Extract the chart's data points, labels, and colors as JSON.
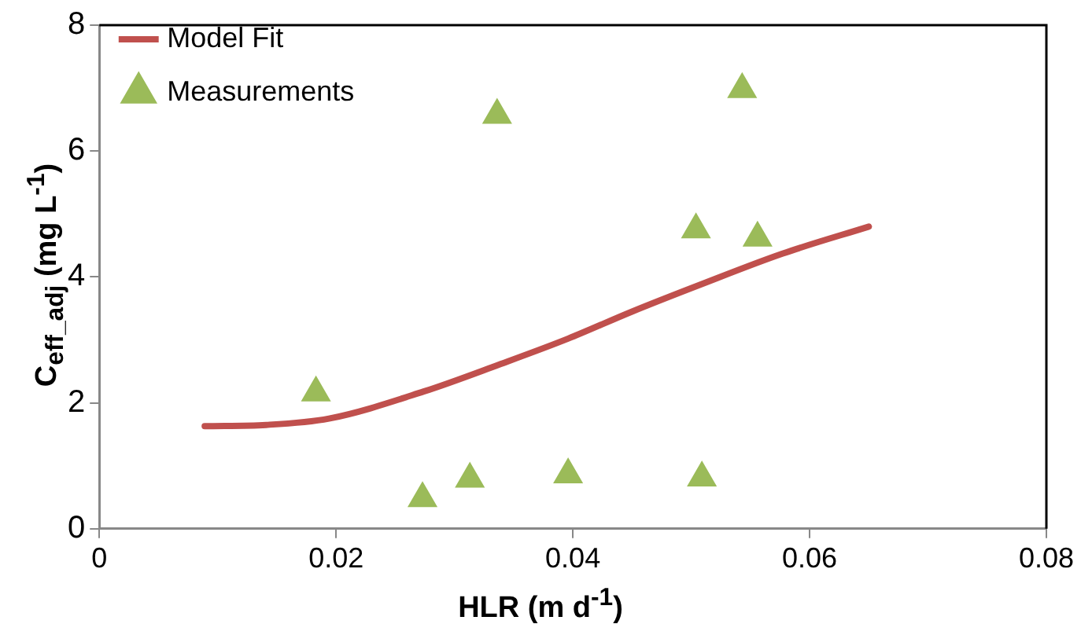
{
  "chart_data": {
    "type": "scatter",
    "xlabel": "HLR (m d$^{-1}$)",
    "ylabel": "C$_{eff_adj}$ (mg L$^{-1}$)",
    "xlim": [
      0,
      0.08
    ],
    "xticks": [
      0,
      0.02,
      0.04,
      0.06,
      0.08
    ],
    "ylim": [
      0,
      8
    ],
    "yticks": [
      0,
      2,
      4,
      6,
      8
    ],
    "grid": false,
    "legend": "top left",
    "series": [
      {
        "name": "Model Fit",
        "type": "line",
        "color": "#c0504d",
        "marker": "none",
        "line_style": "solid",
        "x": [
          0.0089,
          0.0141,
          0.0194,
          0.0274,
          0.0338,
          0.0396,
          0.045,
          0.0508,
          0.0577,
          0.065
        ],
        "values": [
          1.63,
          1.65,
          1.75,
          2.18,
          2.61,
          3.02,
          3.45,
          3.88,
          4.37,
          4.8
        ]
      },
      {
        "name": "Measurements",
        "type": "scatter",
        "color": "#9bbb59",
        "marker": "triangle",
        "x": [
          0.0183,
          0.0273,
          0.0313,
          0.0336,
          0.0396,
          0.0504,
          0.0509,
          0.0543,
          0.0556
        ],
        "values": [
          2.16,
          0.48,
          0.79,
          6.57,
          0.86,
          4.75,
          0.81,
          6.98,
          4.62
        ]
      }
    ]
  }
}
